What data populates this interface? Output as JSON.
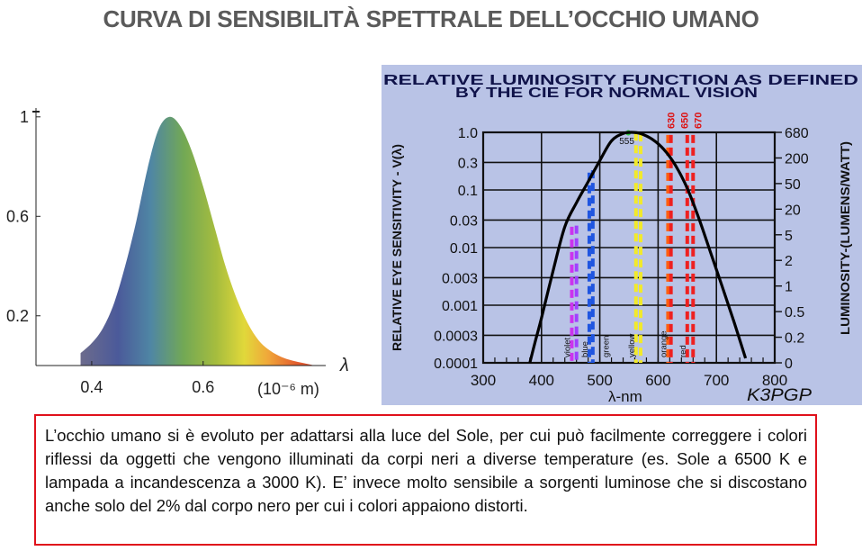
{
  "title": "CURVA DI SENSIBILITÀ SPETTRALE DELL’OCCHIO UMANO",
  "caption": "L’occhio umano si è evoluto per adattarsi alla luce del Sole, per cui può facilmente correggere i colori riflessi da oggetti che vengono illuminati da corpi neri a diverse temperature (es. Sole a 6500 K e lampada a incandescenza a 3000 K). E’ invece molto sensibile a sorgenti luminose che si discostano anche solo del 2% dal corpo nero per cui i colori appaiono distorti.",
  "chart_data": [
    {
      "type": "area",
      "title": "",
      "xlabel": "λ",
      "x_unit": "(10⁻⁶ m)",
      "ylabel": "",
      "xlim": [
        0.3,
        0.82
      ],
      "ylim": [
        0,
        1.05
      ],
      "x_ticks": [
        0.4,
        0.6
      ],
      "y_ticks": [
        0.2,
        0.6,
        1
      ],
      "x_tick_labels": [
        "0.4",
        "0.6"
      ],
      "y_tick_labels": [
        "0.2",
        "0.6",
        "1"
      ],
      "x": [
        0.38,
        0.4,
        0.42,
        0.44,
        0.46,
        0.48,
        0.5,
        0.52,
        0.54,
        0.56,
        0.58,
        0.6,
        0.62,
        0.64,
        0.66,
        0.68,
        0.7,
        0.72,
        0.74,
        0.76,
        0.78,
        0.8
      ],
      "values": [
        0.05,
        0.09,
        0.15,
        0.25,
        0.4,
        0.58,
        0.79,
        0.95,
        1.0,
        0.96,
        0.86,
        0.72,
        0.56,
        0.4,
        0.27,
        0.17,
        0.1,
        0.06,
        0.035,
        0.02,
        0.01,
        0.0
      ],
      "fill": "visible-spectrum gradient (violet → blue → green → yellow → orange → red)"
    },
    {
      "type": "line",
      "title_lines": [
        "RELATIVE LUMINOSITY FUNCTION AS DEFINED",
        "BY THE CIE FOR NORMAL VISION"
      ],
      "xlabel": "λ-nm",
      "ylabel": "RELATIVE EYE SENSITIVITY - V(λ)",
      "ylabel2": "LUMINOSITY-(LUMENS/WATT)",
      "xlim": [
        300,
        800
      ],
      "x_ticks": [
        300,
        400,
        500,
        600,
        700,
        800
      ],
      "x_tick_labels": [
        "300",
        "400",
        "500",
        "600",
        "700",
        "800"
      ],
      "y_scale": "log",
      "y_ticks": [
        0.0001,
        0.0003,
        0.001,
        0.003,
        0.01,
        0.03,
        0.1,
        0.3,
        1.0
      ],
      "y_tick_labels": [
        "0.0001",
        "0.0003",
        "0.001",
        "0.003",
        "0.01",
        "0.03",
        "0.1",
        "0.3",
        "1.0"
      ],
      "y2_tick_labels": [
        "0",
        "0.2",
        "0.5",
        "1",
        "2",
        "5",
        "20",
        "50",
        "200",
        "680"
      ],
      "grid": true,
      "curve": {
        "x": [
          380,
          390,
          400,
          420,
          440,
          460,
          480,
          500,
          520,
          540,
          555,
          570,
          590,
          610,
          630,
          650,
          670,
          690,
          710,
          730,
          750
        ],
        "y": [
          0.0001,
          0.00025,
          0.0006,
          0.004,
          0.023,
          0.06,
          0.139,
          0.323,
          0.71,
          0.954,
          1.0,
          0.952,
          0.757,
          0.503,
          0.265,
          0.107,
          0.032,
          0.0082,
          0.0021,
          0.00052,
          0.00012
        ]
      },
      "peak_label": "555",
      "peak_x": 555,
      "marker_lines": [
        {
          "x": 452,
          "top": 0.023,
          "color": "#cc33ee",
          "label": "violet"
        },
        {
          "x": 460,
          "top": 0.024,
          "color": "#a040ff",
          "label": ""
        },
        {
          "x": 482,
          "top": 0.2,
          "color": "#1f55e0",
          "label": "blue"
        },
        {
          "x": 488,
          "top": 0.22,
          "color": "#1f55e0",
          "label": ""
        },
        {
          "x": 562,
          "top": 0.99,
          "color": "#f2ea2a",
          "label": "yellow"
        },
        {
          "x": 570,
          "top": 0.96,
          "color": "#f2ea2a",
          "label": ""
        },
        {
          "x": 617,
          "top": 0.9,
          "color": "#ff6010",
          "label": "orange"
        },
        {
          "x": 622,
          "top": 0.9,
          "color": "#ee2020",
          "label": ""
        },
        {
          "x": 650,
          "top": 0.9,
          "color": "#ee2020",
          "label": "red"
        },
        {
          "x": 660,
          "top": 0.9,
          "color": "#ee2020",
          "label": ""
        }
      ],
      "marker_green_label": "green",
      "wavelength_marks": [
        "630",
        "650",
        "670"
      ],
      "logo": "K3PGP",
      "background": "#b9c3e6"
    }
  ]
}
